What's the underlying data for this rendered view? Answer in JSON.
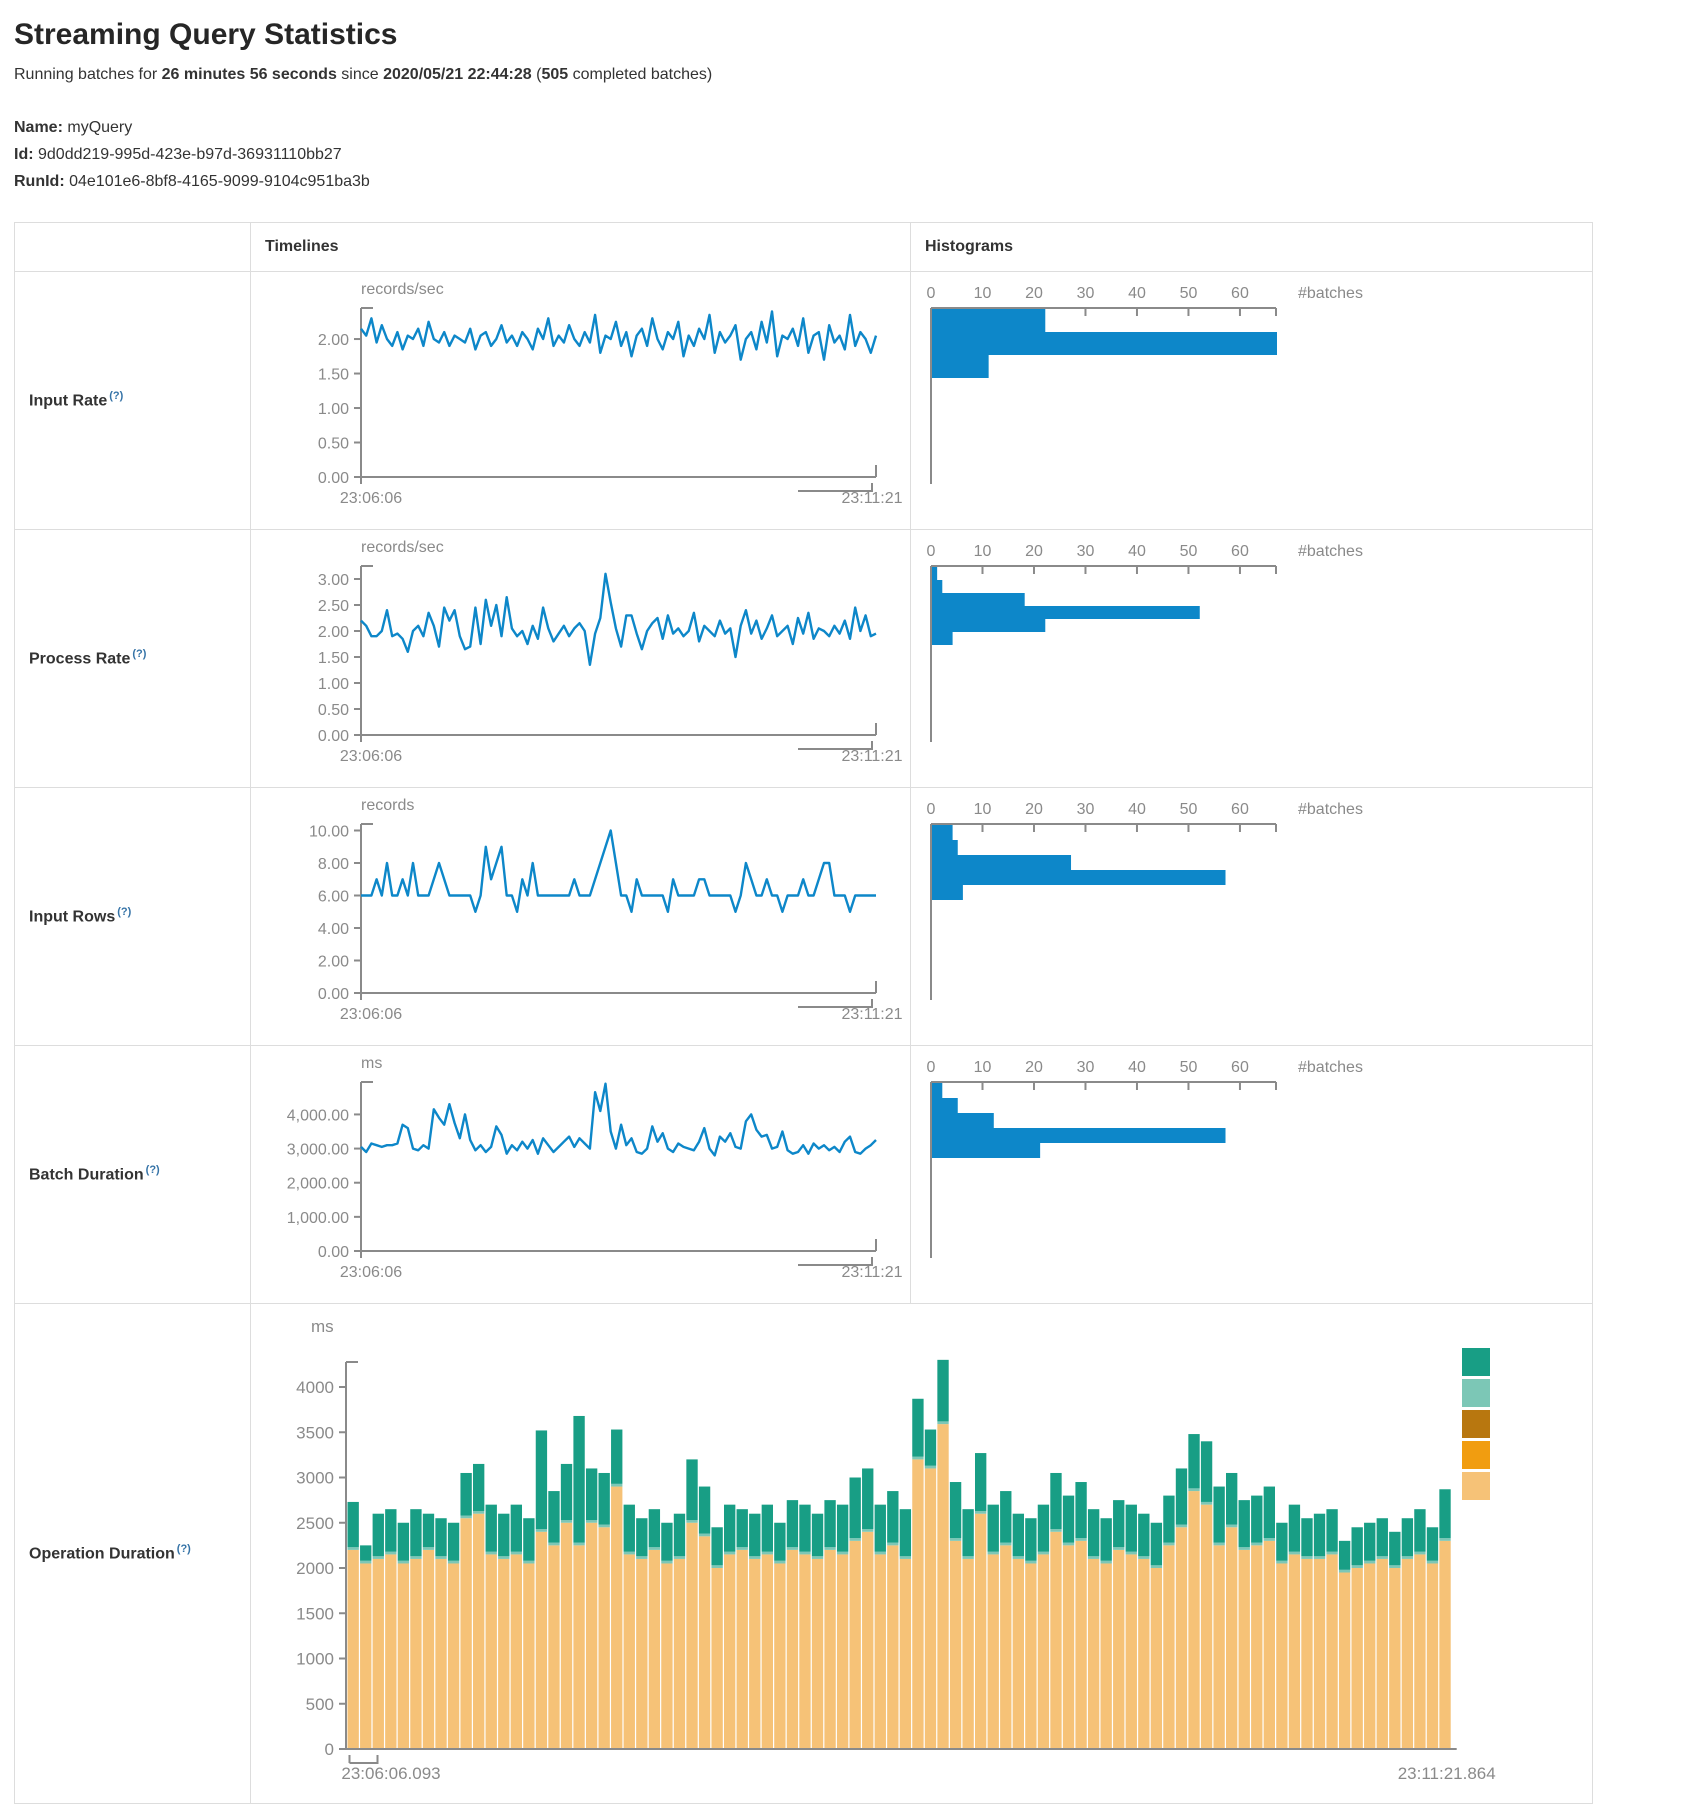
{
  "header": {
    "title": "Streaming Query Statistics",
    "subtitle": {
      "p1": "Running batches for ",
      "b1": "26 minutes 56 seconds",
      "p2": " since ",
      "b2": "2020/05/21 22:44:28",
      "p3": " (",
      "b3": "505",
      "p4": " completed batches)"
    }
  },
  "query_info": {
    "name_label": "Name:",
    "name": "myQuery",
    "id_label": "Id:",
    "id": "9d0dd219-995d-423e-b97d-36931110bb27",
    "runid_label": "RunId:",
    "runid": "04e101e6-8bf8-4165-9099-9104c951ba3b"
  },
  "table": {
    "col_timelines": "Timelines",
    "col_histograms": "Histograms",
    "batches_label": "#batches"
  },
  "rows": [
    {
      "label": "Input Rate",
      "help": "(?)"
    },
    {
      "label": "Process Rate",
      "help": "(?)"
    },
    {
      "label": "Input Rows",
      "help": "(?)"
    },
    {
      "label": "Batch Duration",
      "help": "(?)"
    },
    {
      "label": "Operation Duration",
      "help": "(?)"
    }
  ],
  "colors": {
    "line_blue": "#0d87c9",
    "hist_blue": "#0d87c9",
    "axis_gray": "#8a8a8a",
    "tan": "#f6c277",
    "light_teal": "#7cc7b6",
    "green": "#189e85",
    "dark_orange": "#b8770f",
    "orange": "#f19d10",
    "border": "#dddddd"
  },
  "chart_data": [
    {
      "name": "input_rate",
      "type": "line",
      "unit": "records/sec",
      "x_range": [
        "23:06:06",
        "23:11:21"
      ],
      "y_max": 2.45,
      "y_ticks": [
        [
          "0.00",
          0
        ],
        [
          "0.50",
          0.5
        ],
        [
          "1.00",
          1
        ],
        [
          "1.50",
          1.5
        ],
        [
          "2.00",
          2
        ]
      ],
      "values": [
        2.15,
        2.05,
        2.3,
        1.95,
        2.2,
        2.0,
        1.9,
        2.1,
        1.85,
        2.05,
        2.0,
        2.15,
        1.9,
        2.25,
        2.0,
        1.95,
        2.1,
        1.9,
        2.05,
        2.0,
        1.95,
        2.15,
        1.85,
        2.05,
        2.1,
        1.9,
        2.0,
        2.2,
        1.95,
        2.05,
        1.9,
        2.1,
        2.0,
        1.85,
        2.15,
        2.0,
        2.3,
        1.9,
        2.05,
        1.95,
        2.2,
        2.0,
        1.9,
        2.1,
        1.95,
        2.35,
        1.8,
        2.05,
        2.0,
        2.25,
        1.9,
        2.1,
        1.75,
        2.05,
        2.15,
        1.9,
        2.3,
        2.0,
        1.85,
        2.1,
        2.0,
        2.25,
        1.75,
        2.05,
        1.9,
        2.15,
        2.0,
        2.35,
        1.8,
        2.1,
        1.95,
        2.05,
        2.2,
        1.7,
        2.0,
        2.1,
        1.85,
        2.25,
        1.95,
        2.4,
        1.75,
        2.05,
        2.0,
        2.15,
        1.9,
        2.3,
        1.8,
        2.05,
        2.1,
        1.7,
        2.2,
        1.95,
        2.05,
        1.85,
        2.35,
        1.9,
        2.1,
        2.0,
        1.8,
        2.05
      ],
      "histogram": {
        "unit": "#batches",
        "x_ticks": [
          0,
          10,
          20,
          30,
          40,
          50,
          60
        ],
        "x_max": 67,
        "bins": [
          22,
          67,
          11
        ]
      }
    },
    {
      "name": "process_rate",
      "type": "line",
      "unit": "records/sec",
      "x_range": [
        "23:06:06",
        "23:11:21"
      ],
      "y_max": 3.25,
      "y_ticks": [
        [
          "0.00",
          0
        ],
        [
          "0.50",
          0.5
        ],
        [
          "1.00",
          1
        ],
        [
          "1.50",
          1.5
        ],
        [
          "2.00",
          2
        ],
        [
          "2.50",
          2.5
        ],
        [
          "3.00",
          3
        ]
      ],
      "values": [
        2.2,
        2.1,
        1.9,
        1.9,
        2.0,
        2.4,
        1.9,
        1.95,
        1.85,
        1.6,
        2.0,
        2.1,
        1.9,
        2.35,
        2.1,
        1.7,
        2.45,
        2.2,
        2.4,
        1.9,
        1.65,
        1.7,
        2.45,
        1.75,
        2.6,
        2.1,
        2.5,
        1.9,
        2.65,
        2.05,
        1.9,
        2.0,
        1.75,
        2.1,
        1.85,
        2.45,
        2.05,
        1.8,
        1.95,
        2.1,
        1.9,
        2.05,
        2.15,
        2.0,
        1.35,
        1.95,
        2.25,
        3.1,
        2.55,
        2.05,
        1.7,
        2.3,
        2.3,
        1.95,
        1.65,
        2.0,
        2.15,
        2.25,
        1.85,
        2.3,
        1.95,
        2.05,
        1.9,
        2.0,
        2.35,
        1.8,
        2.1,
        2.0,
        1.9,
        2.2,
        1.95,
        2.05,
        1.5,
        2.1,
        2.4,
        1.95,
        2.2,
        1.85,
        2.05,
        2.3,
        1.9,
        2.0,
        2.1,
        1.75,
        2.25,
        1.95,
        2.35,
        1.85,
        2.05,
        2.0,
        1.9,
        2.1,
        1.95,
        2.2,
        1.85,
        2.45,
        2.0,
        2.3,
        1.9,
        1.95
      ],
      "histogram": {
        "unit": "#batches",
        "x_ticks": [
          0,
          10,
          20,
          30,
          40,
          50,
          60
        ],
        "x_max": 67,
        "bins": [
          1,
          2,
          18,
          52,
          22,
          4
        ]
      }
    },
    {
      "name": "input_rows",
      "type": "line",
      "unit": "records",
      "x_range": [
        "23:06:06",
        "23:11:21"
      ],
      "y_max": 10.4,
      "y_ticks": [
        [
          "0.00",
          0
        ],
        [
          "2.00",
          2
        ],
        [
          "4.00",
          4
        ],
        [
          "6.00",
          6
        ],
        [
          "8.00",
          8
        ],
        [
          "10.00",
          10
        ]
      ],
      "values": [
        6,
        6,
        6,
        7,
        6,
        8,
        6,
        6,
        7,
        6,
        8,
        6,
        6,
        6,
        7,
        8,
        7,
        6,
        6,
        6,
        6,
        6,
        5,
        6,
        9,
        7,
        8,
        9,
        6,
        6,
        5,
        7,
        6,
        8,
        6,
        6,
        6,
        6,
        6,
        6,
        6,
        7,
        6,
        6,
        6,
        7,
        8,
        9,
        10,
        8,
        6,
        6,
        5,
        7,
        6,
        6,
        6,
        6,
        6,
        5,
        7,
        6,
        6,
        6,
        6,
        7,
        7,
        6,
        6,
        6,
        6,
        6,
        5,
        6,
        8,
        7,
        6,
        6,
        7,
        6,
        6,
        5,
        6,
        6,
        6,
        7,
        6,
        6,
        7,
        8,
        8,
        6,
        6,
        6,
        5,
        6,
        6,
        6,
        6,
        6
      ],
      "histogram": {
        "unit": "#batches",
        "x_ticks": [
          0,
          10,
          20,
          30,
          40,
          50,
          60
        ],
        "x_max": 67,
        "bins": [
          4,
          5,
          27,
          57,
          6
        ]
      }
    },
    {
      "name": "batch_duration",
      "type": "line",
      "unit": "ms",
      "x_range": [
        "23:06:06",
        "23:11:21"
      ],
      "y_max": 4950,
      "y_ticks": [
        [
          "0.00",
          0
        ],
        [
          "1,000.00",
          1000
        ],
        [
          "2,000.00",
          2000
        ],
        [
          "3,000.00",
          3000
        ],
        [
          "4,000.00",
          4000
        ]
      ],
      "values": [
        3050,
        2900,
        3150,
        3100,
        3050,
        3100,
        3100,
        3150,
        3700,
        3600,
        3000,
        2950,
        3100,
        3000,
        4150,
        3900,
        3700,
        4300,
        3750,
        3300,
        4000,
        3250,
        2950,
        3100,
        2900,
        3050,
        3650,
        3400,
        2850,
        3100,
        2950,
        3200,
        3000,
        3250,
        2850,
        3300,
        3100,
        2900,
        3050,
        3200,
        3350,
        3050,
        3300,
        3150,
        3000,
        4650,
        4100,
        4900,
        3500,
        3000,
        3700,
        3100,
        3300,
        2900,
        2850,
        3000,
        3650,
        3200,
        3450,
        3000,
        2900,
        3150,
        3050,
        3000,
        2950,
        3200,
        3600,
        3000,
        2800,
        3350,
        3200,
        3450,
        3050,
        3000,
        3800,
        4000,
        3550,
        3350,
        3400,
        3000,
        3050,
        3500,
        2950,
        2850,
        2900,
        3100,
        2850,
        3150,
        3000,
        3100,
        2950,
        3050,
        2900,
        3200,
        3350,
        2900,
        2850,
        3000,
        3100,
        3250
      ],
      "histogram": {
        "unit": "#batches",
        "x_ticks": [
          0,
          10,
          20,
          30,
          40,
          50,
          60
        ],
        "x_max": 67,
        "bins": [
          2,
          5,
          12,
          57,
          21
        ]
      }
    },
    {
      "name": "operation_duration",
      "type": "stacked_bar",
      "unit": "ms",
      "x_range": [
        "23:06:06.093",
        "23:11:21.864"
      ],
      "y_max": 4400,
      "y_ticks": [
        [
          "0",
          0
        ],
        [
          "500",
          500
        ],
        [
          "1000",
          1000
        ],
        [
          "1500",
          1500
        ],
        [
          "2000",
          2000
        ],
        [
          "2500",
          2500
        ],
        [
          "3000",
          3000
        ],
        [
          "3500",
          3500
        ],
        [
          "4000",
          4000
        ]
      ],
      "series": [
        {
          "name": "bottom_segment",
          "color": "#f6c277",
          "values": [
            2200,
            2050,
            2100,
            2150,
            2050,
            2100,
            2200,
            2100,
            2050,
            2550,
            2600,
            2150,
            2100,
            2150,
            2050,
            2400,
            2250,
            2500,
            2250,
            2500,
            2450,
            2900,
            2150,
            2100,
            2200,
            2050,
            2100,
            2500,
            2350,
            2000,
            2150,
            2200,
            2100,
            2150,
            2050,
            2200,
            2150,
            2100,
            2200,
            2150,
            2300,
            2400,
            2150,
            2250,
            2100,
            3200,
            3100,
            3590,
            2300,
            2100,
            2600,
            2150,
            2250,
            2100,
            2050,
            2150,
            2400,
            2250,
            2300,
            2100,
            2050,
            2200,
            2150,
            2100,
            2000,
            2250,
            2450,
            2850,
            2700,
            2250,
            2450,
            2200,
            2250,
            2300,
            2050,
            2150,
            2100,
            2100,
            2150,
            1950,
            2000,
            2050,
            2100,
            2000,
            2100,
            2150,
            2050,
            2300
          ]
        },
        {
          "name": "middle_segment",
          "color": "#7cc7b6",
          "constant_value": 30
        },
        {
          "name": "top_segment",
          "color": "#189e85",
          "values": [
            500,
            170,
            470,
            470,
            420,
            520,
            370,
            420,
            420,
            470,
            520,
            520,
            470,
            520,
            470,
            1090,
            570,
            620,
            1400,
            570,
            570,
            600,
            520,
            420,
            420,
            420,
            470,
            670,
            520,
            420,
            520,
            420,
            470,
            520,
            420,
            520,
            520,
            470,
            520,
            520,
            670,
            670,
            520,
            570,
            520,
            640,
            400,
            680,
            620,
            520,
            640,
            520,
            570,
            470,
            470,
            520,
            620,
            520,
            620,
            520,
            470,
            520,
            520,
            470,
            470,
            520,
            620,
            600,
            670,
            620,
            570,
            520,
            520,
            570,
            420,
            520,
            420,
            470,
            470,
            320,
            420,
            420,
            420,
            370,
            420,
            470,
            370,
            540
          ]
        }
      ],
      "legend_colors": [
        "#189e85",
        "#7cc7b6",
        "#b8770f",
        "#f19d10",
        "#f6c277"
      ]
    }
  ]
}
